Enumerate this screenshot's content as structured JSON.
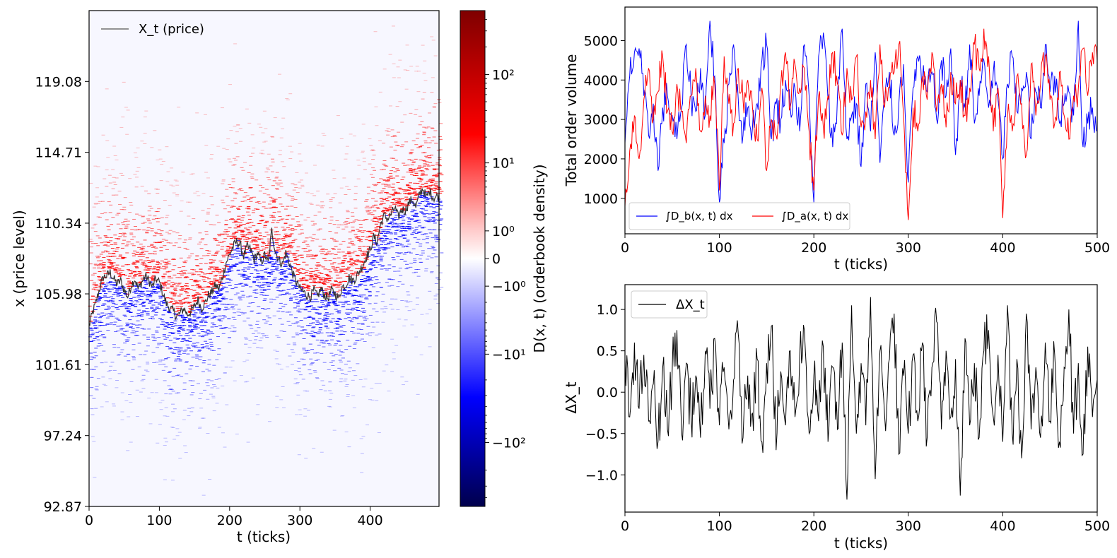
{
  "chart_data": [
    {
      "type": "heatmap",
      "xlabel": "t (ticks)",
      "ylabel": "x (price level)",
      "xlim": [
        0,
        500
      ],
      "ylim": [
        92.87,
        123.45
      ],
      "x_ticks": [
        "0",
        "100",
        "200",
        "300",
        "400"
      ],
      "x_tick_values": [
        0,
        100,
        200,
        300,
        400
      ],
      "y_ticks": [
        "92.87",
        "97.24",
        "101.61",
        "105.98",
        "110.34",
        "114.71",
        "119.08"
      ],
      "y_tick_values": [
        92.87,
        97.24,
        101.61,
        105.98,
        110.34,
        114.71,
        119.08
      ],
      "legend": [
        {
          "name": "X_t (price)",
          "color": "#555555"
        }
      ],
      "legend_placement": "top-left",
      "price_path": {
        "t": [
          0,
          5,
          10,
          15,
          20,
          25,
          30,
          35,
          40,
          45,
          50,
          55,
          60,
          65,
          70,
          75,
          80,
          85,
          90,
          95,
          100,
          105,
          110,
          115,
          120,
          125,
          130,
          135,
          140,
          145,
          150,
          155,
          160,
          165,
          170,
          175,
          180,
          185,
          190,
          195,
          200,
          205,
          210,
          215,
          220,
          225,
          230,
          235,
          240,
          245,
          250,
          255,
          260,
          265,
          270,
          275,
          280,
          285,
          290,
          295,
          300,
          305,
          310,
          315,
          320,
          325,
          330,
          335,
          340,
          345,
          350,
          355,
          360,
          365,
          370,
          375,
          380,
          385,
          390,
          395,
          400,
          405,
          410,
          415,
          420,
          425,
          430,
          435,
          440,
          445,
          450,
          455,
          460,
          465,
          470,
          475,
          480,
          485,
          490,
          495,
          500
        ],
        "x": [
          104.0,
          104.8,
          105.5,
          106.3,
          107.0,
          107.1,
          107.3,
          106.9,
          106.6,
          106.8,
          106.2,
          105.8,
          106.5,
          106.9,
          106.3,
          106.7,
          107.1,
          106.8,
          106.4,
          106.9,
          106.7,
          106.0,
          105.4,
          105.1,
          104.9,
          104.6,
          104.8,
          105.1,
          104.7,
          104.9,
          105.2,
          105.6,
          105.1,
          105.4,
          105.9,
          106.1,
          106.5,
          106.3,
          107.0,
          107.9,
          108.4,
          108.9,
          109.2,
          109.0,
          108.3,
          108.9,
          108.7,
          108.1,
          108.5,
          107.9,
          108.4,
          107.9,
          109.9,
          108.6,
          108.1,
          107.8,
          108.5,
          107.9,
          107.2,
          106.7,
          106.3,
          106.1,
          105.9,
          105.8,
          106.2,
          105.8,
          106.3,
          105.9,
          105.7,
          106.2,
          106.0,
          105.7,
          106.4,
          106.5,
          107.0,
          106.8,
          107.0,
          107.4,
          107.8,
          108.3,
          108.7,
          109.5,
          109.2,
          110.3,
          110.8,
          110.6,
          110.9,
          111.3,
          110.7,
          111.2,
          111.1,
          111.6,
          111.8,
          111.3,
          112.1,
          112.5,
          111.9,
          112.3,
          111.9,
          112.0,
          111.9
        ]
      },
      "colorbar": {
        "label": "D(x, t) (orderbook density)",
        "scale": "symlog",
        "ticks": [
          "10²",
          "10¹",
          "10⁰",
          "0",
          "−10⁰",
          "−10¹",
          "−10²"
        ],
        "tick_values": [
          100,
          10,
          1,
          0,
          -1,
          -10,
          -100
        ],
        "range": [
          -500,
          500
        ],
        "colormap": "seismic",
        "colors": {
          "negative": "#00008b",
          "zero": "#ffffff",
          "positive": "#8b0000"
        }
      },
      "series_colors": {
        "bid": "#0000ff",
        "ask": "#ff0000"
      }
    },
    {
      "type": "line",
      "xlabel": "t (ticks)",
      "ylabel": "Total order volume",
      "xlim": [
        0,
        500
      ],
      "ylim": [
        100,
        5850
      ],
      "x_ticks": [
        "0",
        "100",
        "200",
        "300",
        "400",
        "500"
      ],
      "x_tick_values": [
        0,
        100,
        200,
        300,
        400,
        500
      ],
      "y_ticks": [
        "1000",
        "2000",
        "3000",
        "4000",
        "5000"
      ],
      "y_tick_values": [
        1000,
        2000,
        3000,
        4000,
        5000
      ],
      "legend_placement": "lower-left",
      "series": [
        {
          "name": "∫D_b(x, t) dx",
          "color": "#0000ff",
          "x": [
            0,
            5,
            10,
            15,
            20,
            25,
            30,
            35,
            40,
            45,
            50,
            55,
            60,
            65,
            70,
            75,
            80,
            85,
            90,
            95,
            100,
            105,
            110,
            115,
            120,
            125,
            130,
            135,
            140,
            145,
            150,
            155,
            160,
            165,
            170,
            175,
            180,
            185,
            190,
            195,
            200,
            205,
            210,
            215,
            220,
            225,
            230,
            235,
            240,
            245,
            250,
            255,
            260,
            265,
            270,
            275,
            280,
            285,
            290,
            295,
            300,
            305,
            310,
            315,
            320,
            325,
            330,
            335,
            340,
            345,
            350,
            355,
            360,
            365,
            370,
            375,
            380,
            385,
            390,
            395,
            400,
            405,
            410,
            415,
            420,
            425,
            430,
            435,
            440,
            445,
            450,
            455,
            460,
            465,
            470,
            475,
            480,
            485,
            490,
            495,
            500
          ],
          "values": [
            2400,
            4100,
            4700,
            4800,
            3600,
            2600,
            3400,
            1700,
            3300,
            3600,
            3100,
            2500,
            3300,
            4900,
            3600,
            3200,
            4300,
            3100,
            5500,
            4100,
            900,
            2400,
            3900,
            4900,
            3500,
            2600,
            3300,
            2800,
            3400,
            4500,
            4900,
            2500,
            3400,
            3000,
            4000,
            3300,
            3800,
            2700,
            4900,
            3600,
            900,
            4600,
            5200,
            3500,
            2300,
            3600,
            5300,
            2500,
            3100,
            3400,
            1800,
            3900,
            2700,
            4700,
            1900,
            3500,
            4200,
            2600,
            3400,
            4400,
            1400,
            3800,
            4600,
            4000,
            3700,
            4200,
            3000,
            4500,
            3600,
            4800,
            2100,
            4000,
            3300,
            4900,
            2900,
            3600,
            4500,
            3300,
            4200,
            3500,
            2000,
            3900,
            4600,
            3200,
            3800,
            4200,
            2500,
            3700,
            3300,
            4900,
            3700,
            4100,
            2900,
            3400,
            3700,
            3100,
            5500,
            2300,
            2900,
            3300,
            2700
          ]
        },
        {
          "name": "∫D_a(x, t) dx",
          "color": "#ff0000",
          "x": [
            0,
            5,
            10,
            15,
            20,
            25,
            30,
            35,
            40,
            45,
            50,
            55,
            60,
            65,
            70,
            75,
            80,
            85,
            90,
            95,
            100,
            105,
            110,
            115,
            120,
            125,
            130,
            135,
            140,
            145,
            150,
            155,
            160,
            165,
            170,
            175,
            180,
            185,
            190,
            195,
            200,
            205,
            210,
            215,
            220,
            225,
            230,
            235,
            240,
            245,
            250,
            255,
            260,
            265,
            270,
            275,
            280,
            285,
            290,
            295,
            300,
            305,
            310,
            315,
            320,
            325,
            330,
            335,
            340,
            345,
            350,
            355,
            360,
            365,
            370,
            375,
            380,
            385,
            390,
            395,
            400,
            405,
            410,
            415,
            420,
            425,
            430,
            435,
            440,
            445,
            450,
            455,
            460,
            465,
            470,
            475,
            480,
            485,
            490,
            495,
            500
          ],
          "values": [
            800,
            2200,
            3100,
            2000,
            3500,
            4300,
            3000,
            3700,
            4600,
            3200,
            2700,
            3900,
            3200,
            2400,
            3600,
            4300,
            2700,
            3600,
            3100,
            3900,
            1200,
            4600,
            3400,
            2900,
            4300,
            3500,
            4000,
            3300,
            2500,
            3800,
            1700,
            3000,
            2600,
            3900,
            4700,
            3300,
            4400,
            3800,
            4300,
            2700,
            1200,
            3600,
            2800,
            3600,
            4700,
            3900,
            2600,
            4300,
            3500,
            4600,
            2800,
            3200,
            4000,
            2500,
            4900,
            3300,
            3800,
            4200,
            4900,
            3100,
            450,
            3300,
            2700,
            4100,
            3500,
            4700,
            3200,
            3900,
            2800,
            4200,
            3400,
            4000,
            3100,
            3800,
            4900,
            4300,
            5300,
            4600,
            2700,
            3800,
            500,
            3100,
            2700,
            4100,
            3400,
            2100,
            4400,
            3100,
            3900,
            4600,
            3500,
            2900,
            4200,
            3100,
            2500,
            3600,
            3800,
            4800,
            3600,
            4700,
            4500
          ]
        }
      ]
    },
    {
      "type": "line",
      "xlabel": "t (ticks)",
      "ylabel": "ΔX_t",
      "xlim": [
        0,
        500
      ],
      "ylim": [
        -1.45,
        1.3
      ],
      "x_ticks": [
        "0",
        "100",
        "200",
        "300",
        "400",
        "500"
      ],
      "x_tick_values": [
        0,
        100,
        200,
        300,
        400,
        500
      ],
      "y_ticks": [
        "−1.0",
        "−0.5",
        "0.0",
        "0.5",
        "1.0"
      ],
      "y_tick_values": [
        -1.0,
        -0.5,
        0.0,
        0.5,
        1.0
      ],
      "legend_placement": "top-left",
      "series": [
        {
          "name": "ΔX_t",
          "color": "#000000",
          "x": [
            0,
            5,
            10,
            15,
            20,
            25,
            30,
            35,
            40,
            45,
            50,
            55,
            60,
            65,
            70,
            75,
            80,
            85,
            90,
            95,
            100,
            105,
            110,
            115,
            120,
            125,
            130,
            135,
            140,
            145,
            150,
            155,
            160,
            165,
            170,
            175,
            180,
            185,
            190,
            195,
            200,
            205,
            210,
            215,
            220,
            225,
            230,
            235,
            240,
            245,
            250,
            255,
            260,
            265,
            270,
            275,
            280,
            285,
            290,
            295,
            300,
            305,
            310,
            315,
            320,
            325,
            330,
            335,
            340,
            345,
            350,
            355,
            360,
            365,
            370,
            375,
            380,
            385,
            390,
            395,
            400,
            405,
            410,
            415,
            420,
            425,
            430,
            435,
            440,
            445,
            450,
            455,
            460,
            465,
            470,
            475,
            480,
            485,
            490,
            495,
            500
          ],
          "values": [
            0.4,
            -0.3,
            0.6,
            -0.2,
            0.45,
            -0.35,
            0.1,
            -0.6,
            0.3,
            -0.45,
            0.25,
            0.75,
            -0.5,
            0.35,
            -0.3,
            0.2,
            -0.55,
            0.5,
            -0.2,
            0.65,
            -0.4,
            0.3,
            -0.45,
            0.15,
            0.7,
            -0.55,
            0.2,
            -0.25,
            0.4,
            -0.6,
            0.35,
            0.8,
            -0.7,
            0.25,
            -0.4,
            0.5,
            -0.3,
            0.45,
            0.75,
            -0.5,
            0.2,
            -0.35,
            0.55,
            -0.6,
            0.3,
            -0.45,
            0.6,
            -1.3,
            1.05,
            -0.5,
            0.35,
            -0.4,
            1.15,
            -1.05,
            0.5,
            -0.3,
            0.4,
            0.95,
            -0.75,
            0.2,
            -0.5,
            0.45,
            -0.35,
            0.6,
            -0.55,
            0.3,
            0.85,
            -0.45,
            0.5,
            -0.3,
            0.4,
            -1.25,
            0.65,
            -0.4,
            0.35,
            -0.55,
            0.5,
            0.75,
            -0.3,
            0.45,
            -0.6,
            1.05,
            -0.5,
            0.4,
            -0.8,
            0.95,
            -0.45,
            0.3,
            -0.55,
            0.6,
            -0.35,
            0.45,
            -0.6,
            0.3,
            1.0,
            -0.5,
            0.35,
            -0.75,
            0.55,
            -0.3,
            0.15
          ]
        }
      ]
    }
  ]
}
